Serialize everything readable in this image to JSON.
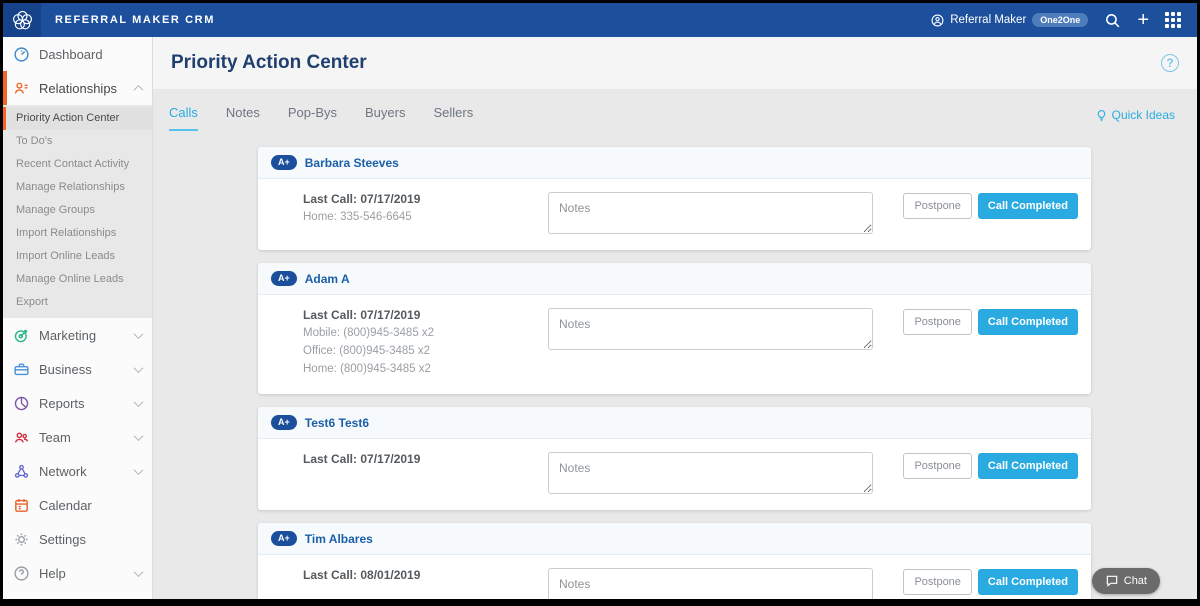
{
  "navbar": {
    "brand": "REFERRAL MAKER CRM",
    "account_label": "Referral Maker",
    "account_badge": "One2One"
  },
  "sidebar": {
    "items": [
      {
        "label": "Dashboard",
        "icon": "gauge-icon",
        "color": "#3e87c8",
        "chevron": "none",
        "active": false
      },
      {
        "label": "Relationships",
        "icon": "contact-icon",
        "color": "#f26522",
        "chevron": "up",
        "active": true,
        "submenu": [
          "Priority Action Center",
          "To Do's",
          "Recent Contact Activity",
          "Manage Relationships",
          "Manage Groups",
          "Import Relationships",
          "Import Online Leads",
          "Manage Online Leads",
          "Export"
        ],
        "submenu_active": "Priority Action Center"
      },
      {
        "label": "Marketing",
        "icon": "target-icon",
        "color": "#2bb68c",
        "chevron": "down",
        "active": false
      },
      {
        "label": "Business",
        "icon": "briefcase-icon",
        "color": "#4a90d9",
        "chevron": "down",
        "active": false
      },
      {
        "label": "Reports",
        "icon": "pie-icon",
        "color": "#7e57a5",
        "chevron": "down",
        "active": false
      },
      {
        "label": "Team",
        "icon": "team-icon",
        "color": "#cf3347",
        "chevron": "down",
        "active": false
      },
      {
        "label": "Network",
        "icon": "network-icon",
        "color": "#6a6ad0",
        "chevron": "down",
        "active": false
      },
      {
        "label": "Calendar",
        "icon": "calendar-icon",
        "color": "#e8622a",
        "chevron": "none",
        "active": false
      },
      {
        "label": "Settings",
        "icon": "gear-icon",
        "color": "#9aa0a6",
        "chevron": "none",
        "active": false
      },
      {
        "label": "Help",
        "icon": "help-icon",
        "color": "#9aa0a6",
        "chevron": "down",
        "active": false
      }
    ]
  },
  "page": {
    "title": "Priority Action Center",
    "help_glyph": "?",
    "tabs": [
      {
        "label": "Calls",
        "active": true
      },
      {
        "label": "Notes",
        "active": false
      },
      {
        "label": "Pop-Bys",
        "active": false
      },
      {
        "label": "Buyers",
        "active": false
      },
      {
        "label": "Sellers",
        "active": false
      }
    ],
    "quick_ideas_label": "Quick Ideas",
    "notes_placeholder": "Notes",
    "actions": {
      "postpone": "Postpone",
      "call_completed": "Call Completed"
    }
  },
  "cards": [
    {
      "rating": "A+",
      "name": "Barbara Steeves",
      "last_call": "Last Call: 07/17/2019",
      "phones": [
        "Home: 335-546-6645"
      ]
    },
    {
      "rating": "A+",
      "name": "Adam A",
      "last_call": "Last Call: 07/17/2019",
      "phones": [
        "Mobile: (800)945-3485 x2",
        "Office: (800)945-3485 x2",
        "Home: (800)945-3485 x2"
      ]
    },
    {
      "rating": "A+",
      "name": "Test6 Test6",
      "last_call": "Last Call: 07/17/2019",
      "phones": []
    },
    {
      "rating": "A+",
      "name": "Tim Albares",
      "last_call": "Last Call: 08/01/2019",
      "phones": []
    }
  ],
  "chat": {
    "label": "Chat"
  },
  "colors": {
    "navbar_blue": "#1c4f9c",
    "accent_orange": "#f26522",
    "accent_blue": "#29abe2",
    "title_navy": "#1f3f6e",
    "rating_pill_blue": "#1b4f9c"
  }
}
